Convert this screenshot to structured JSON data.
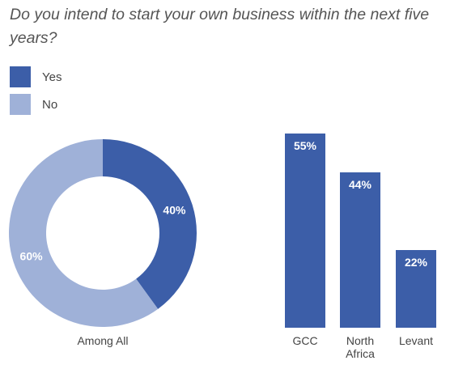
{
  "title": "Do you intend to start your own business within the next five years?",
  "legend": [
    {
      "label": "Yes",
      "color": "#3c5ea8"
    },
    {
      "label": "No",
      "color": "#9fb1d8"
    }
  ],
  "chart_data": [
    {
      "type": "pie",
      "variant": "donut",
      "caption": "Among All",
      "slices": [
        {
          "name": "Yes",
          "value": 40,
          "label": "40%",
          "color": "#3c5ea8"
        },
        {
          "name": "No",
          "value": 60,
          "label": "60%",
          "color": "#9fb1d8"
        }
      ]
    },
    {
      "type": "bar",
      "categories": [
        "GCC",
        "North Africa",
        "Levant"
      ],
      "category_lines": [
        [
          "GCC"
        ],
        [
          "North",
          "Africa"
        ],
        [
          "Levant"
        ]
      ],
      "values": [
        55,
        44,
        22
      ],
      "value_labels": [
        "55%",
        "44%",
        "22%"
      ],
      "color": "#3c5ea8",
      "ylim": [
        0,
        55
      ]
    }
  ]
}
